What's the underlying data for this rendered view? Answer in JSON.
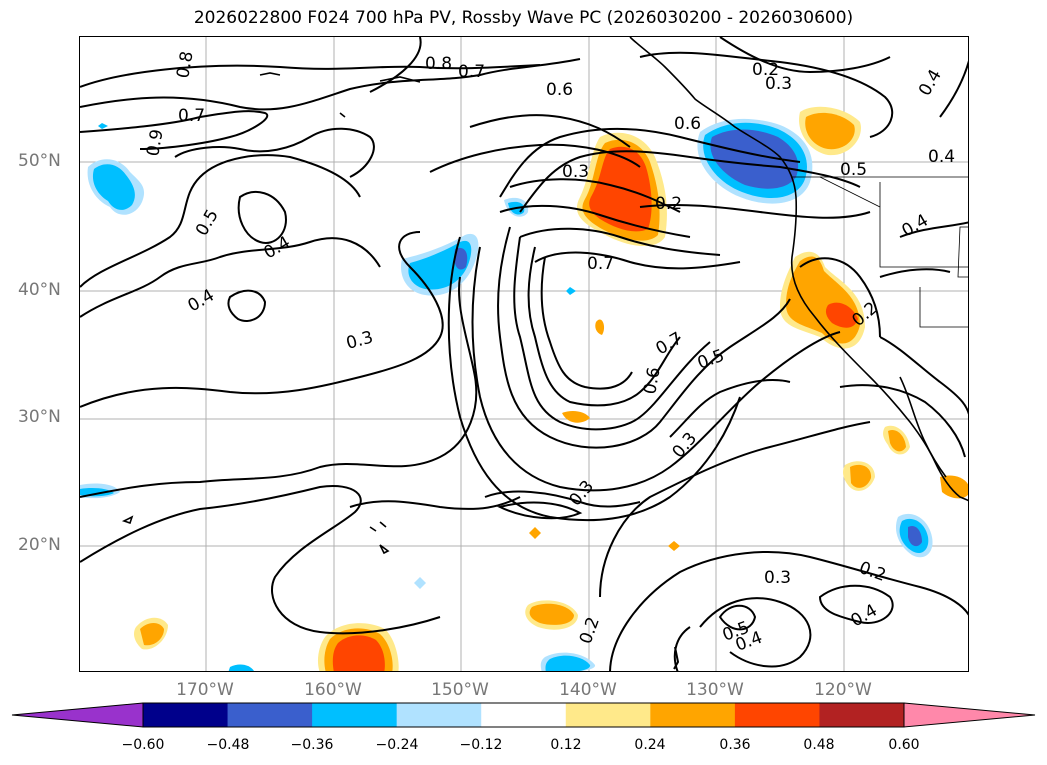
{
  "title": "2026022800 F024 700 hPa PV, Rossby Wave PC (2026030200 - 2026030600)",
  "map": {
    "lat_labels": [
      "50°N",
      "40°N",
      "30°N",
      "20°N"
    ],
    "lon_labels": [
      "170°W",
      "160°W",
      "150°W",
      "140°W",
      "130°W",
      "120°W"
    ],
    "contour_labels": [
      "0.8",
      "0.8",
      "0.7",
      "0.6",
      "0.7",
      "0.9",
      "0.2",
      "0.3",
      "0.4",
      "0.4",
      "0.6",
      "0.5",
      "0.3",
      "0.2",
      "0.5",
      "0.4",
      "0.4",
      "0.7",
      "0.4",
      "0.3",
      "0.2",
      "0.7",
      "0.5",
      "0.6",
      "0.3",
      "0.3",
      "0.3",
      "0.2",
      "0.2",
      "0.4",
      "0.5",
      "0.4"
    ],
    "coastline_color": "#000000",
    "grid_color": "#b0b0b0"
  },
  "colorbar": {
    "ticks": [
      "−0.60",
      "−0.48",
      "−0.36",
      "−0.24",
      "−0.12",
      "0.12",
      "0.24",
      "0.36",
      "0.48",
      "0.60"
    ],
    "colors": [
      "#9932cc",
      "#00008b",
      "#3a5fcd",
      "#00bfff",
      "#b0e2ff",
      "#ffffff",
      "#ffe98a",
      "#ffa500",
      "#ff4500",
      "#b22222",
      "#ff88aa"
    ]
  }
}
